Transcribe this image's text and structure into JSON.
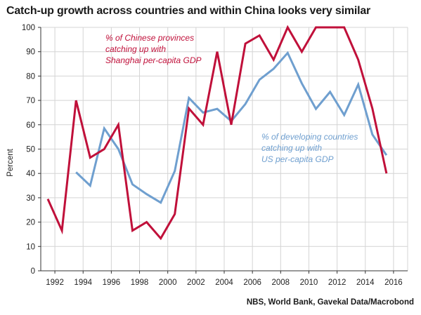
{
  "header": {
    "title": "Catch-up growth across countries and within China looks very similar",
    "source": "NBS, World Bank, Gavekal Data/Macrobond"
  },
  "colors": {
    "china": "#c0103a",
    "countries": "#6f9fcf",
    "grid": "#d4d4d4",
    "axis": "#333333"
  },
  "chart_data": {
    "type": "line",
    "title": "Catch-up growth across countries and within China looks very similar",
    "ylabel": "Percent",
    "xlabel": "",
    "xlim": [
      1991,
      2017
    ],
    "ylim": [
      0,
      100
    ],
    "xticks": [
      1992,
      1994,
      1996,
      1998,
      2000,
      2002,
      2004,
      2006,
      2008,
      2010,
      2012,
      2014,
      2016
    ],
    "yticks": [
      0,
      10,
      20,
      30,
      40,
      50,
      60,
      70,
      80,
      90,
      100
    ],
    "grid": true,
    "series": [
      {
        "name": "% of Chinese provinces catching up with Shanghai per-capita GDP",
        "label_lines": [
          "% of Chinese provinces",
          "catching up with",
          "Shanghai per-capita GDP"
        ],
        "color": "#c0103a",
        "x": [
          1991.5,
          1992.5,
          1993.5,
          1994.5,
          1995.5,
          1996.5,
          1997.5,
          1998.5,
          1999.5,
          2000.5,
          2001.5,
          2002.5,
          2003.5,
          2004.5,
          2005.5,
          2006.5,
          2007.5,
          2008.5,
          2009.5,
          2010.5,
          2011.5,
          2012.5,
          2013.5,
          2014.5,
          2015.5
        ],
        "y": [
          29.5,
          16.5,
          70,
          46.5,
          50,
          60,
          16.5,
          20,
          13.3,
          23.3,
          66.7,
          60,
          90,
          60,
          93.3,
          96.7,
          86.7,
          100,
          90,
          100,
          100,
          100,
          86.7,
          66.7,
          40
        ]
      },
      {
        "name": "% of developing countries catching up with US per-capita GDP",
        "label_lines": [
          "% of developing countries",
          "catching up with",
          "US per-capita GDP"
        ],
        "color": "#6f9fcf",
        "x": [
          1993.5,
          1994.5,
          1995.5,
          1996.5,
          1997.5,
          1998.5,
          1999.5,
          2000.5,
          2001.5,
          2002.5,
          2003.5,
          2004.5,
          2005.5,
          2006.5,
          2007.5,
          2008.5,
          2009.5,
          2010.5,
          2011.5,
          2012.5,
          2013.5,
          2014.5,
          2015.5
        ],
        "y": [
          40.5,
          35,
          58.5,
          50,
          35.5,
          31.5,
          28,
          41,
          71,
          65,
          66.5,
          61.5,
          68.5,
          78.5,
          83,
          89.5,
          77,
          66.5,
          73.5,
          64,
          76.5,
          56,
          47.5
        ]
      }
    ]
  }
}
